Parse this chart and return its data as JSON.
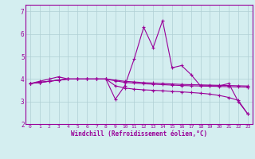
{
  "x": [
    0,
    1,
    2,
    3,
    4,
    5,
    6,
    7,
    8,
    9,
    10,
    11,
    12,
    13,
    14,
    15,
    16,
    17,
    18,
    19,
    20,
    21,
    22,
    23
  ],
  "line1": [
    3.8,
    3.9,
    4.0,
    4.1,
    4.0,
    4.0,
    4.0,
    4.0,
    4.0,
    3.1,
    3.7,
    4.9,
    6.3,
    5.4,
    6.6,
    4.5,
    4.6,
    4.2,
    3.7,
    3.7,
    3.7,
    3.8,
    3.0,
    2.45
  ],
  "line2": [
    3.8,
    3.85,
    3.9,
    3.95,
    4.0,
    4.0,
    4.0,
    4.0,
    4.0,
    3.95,
    3.9,
    3.87,
    3.84,
    3.82,
    3.8,
    3.78,
    3.76,
    3.75,
    3.74,
    3.73,
    3.72,
    3.71,
    3.7,
    3.69
  ],
  "line3": [
    3.8,
    3.85,
    3.9,
    3.95,
    4.0,
    4.0,
    4.0,
    4.0,
    4.0,
    3.7,
    3.6,
    3.55,
    3.52,
    3.5,
    3.48,
    3.45,
    3.43,
    3.4,
    3.37,
    3.33,
    3.27,
    3.18,
    3.05,
    2.45
  ],
  "line4": [
    3.8,
    3.85,
    3.9,
    3.95,
    4.0,
    4.0,
    4.0,
    4.0,
    4.0,
    3.92,
    3.85,
    3.82,
    3.79,
    3.77,
    3.75,
    3.73,
    3.71,
    3.7,
    3.69,
    3.68,
    3.67,
    3.66,
    3.65,
    3.64
  ],
  "line_color": "#990099",
  "bg_color": "#d4eef0",
  "grid_color": "#b0cfd4",
  "xlabel": "Windchill (Refroidissement éolien,°C)",
  "ylim": [
    2.0,
    7.3
  ],
  "xlim": [
    -0.5,
    23.5
  ],
  "yticks": [
    2,
    3,
    4,
    5,
    6,
    7
  ],
  "xticks": [
    0,
    1,
    2,
    3,
    4,
    5,
    6,
    7,
    8,
    9,
    10,
    11,
    12,
    13,
    14,
    15,
    16,
    17,
    18,
    19,
    20,
    21,
    22,
    23
  ]
}
